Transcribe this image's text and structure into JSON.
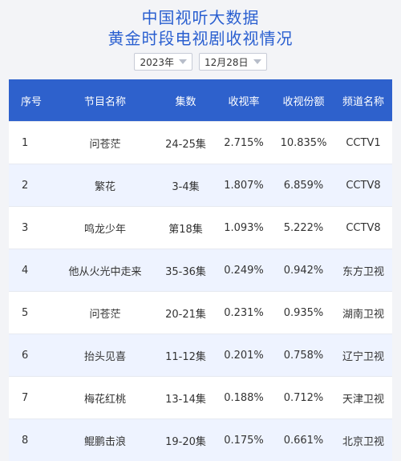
{
  "header": {
    "title_line1": "中国视听大数据",
    "title_line2": "黄金时段电视剧收视情况"
  },
  "filters": {
    "year": "2023年",
    "date": "12月28日"
  },
  "table": {
    "columns": [
      "序号",
      "节目名称",
      "集数",
      "收视率",
      "收视份额",
      "频道名称"
    ],
    "rows": [
      [
        "1",
        "问苍茫",
        "24-25集",
        "2.715%",
        "10.835%",
        "CCTV1"
      ],
      [
        "2",
        "繁花",
        "3-4集",
        "1.807%",
        "6.859%",
        "CCTV8"
      ],
      [
        "3",
        "鸣龙少年",
        "第18集",
        "1.093%",
        "5.222%",
        "CCTV8"
      ],
      [
        "4",
        "他从火光中走来",
        "35-36集",
        "0.249%",
        "0.942%",
        "东方卫视"
      ],
      [
        "5",
        "问苍茫",
        "20-21集",
        "0.231%",
        "0.935%",
        "湖南卫视"
      ],
      [
        "6",
        "抬头见喜",
        "11-12集",
        "0.201%",
        "0.758%",
        "辽宁卫视"
      ],
      [
        "7",
        "梅花红桃",
        "13-14集",
        "0.188%",
        "0.712%",
        "天津卫视"
      ],
      [
        "8",
        "鲲鹏击浪",
        "19-20集",
        "0.175%",
        "0.661%",
        "北京卫视"
      ]
    ]
  },
  "colors": {
    "header_blue": "#2e61cc",
    "title_blue": "#2a5fd0",
    "row_alt": "#eef3ff"
  },
  "icons": {
    "dropdown": "chevron-down-icon"
  }
}
